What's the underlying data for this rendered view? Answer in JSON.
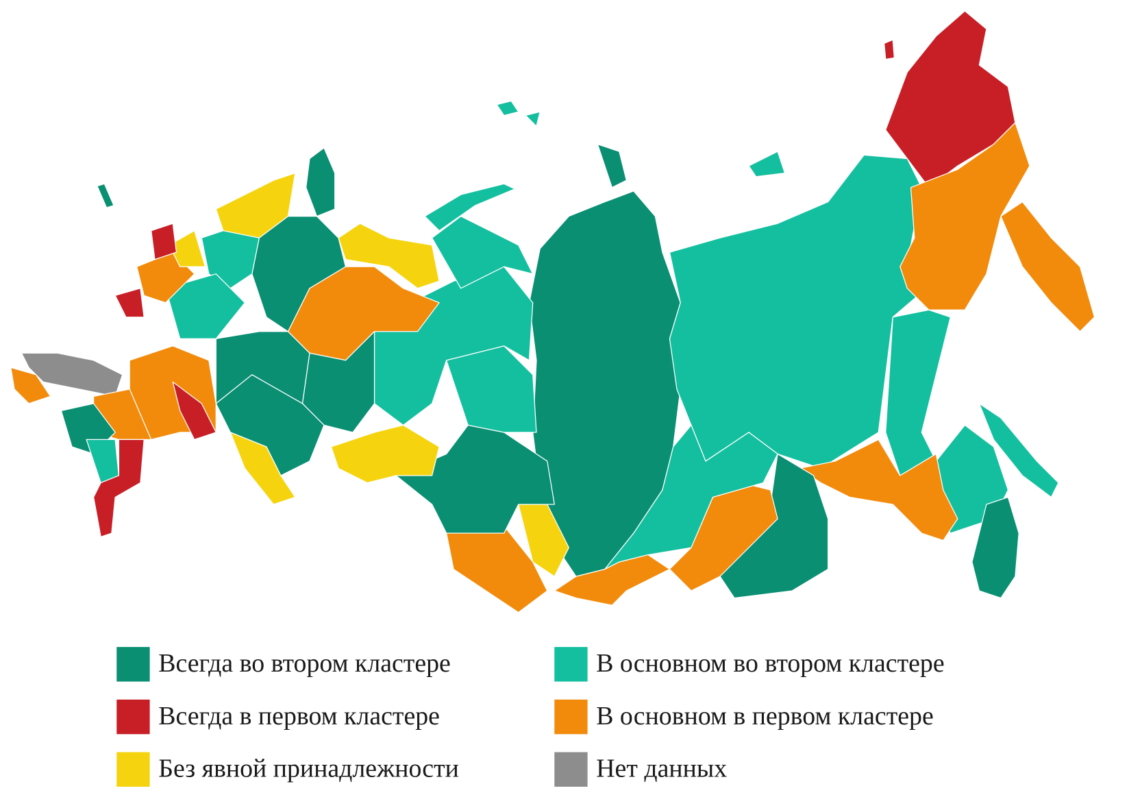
{
  "legend": [
    {
      "label": "Всегда во втором кластере",
      "color": "#0a8f73"
    },
    {
      "label": "В основном во втором кластере",
      "color": "#14bf9f"
    },
    {
      "label": "Всегда в первом кластере",
      "color": "#c81f27"
    },
    {
      "label": "В основном в первом кластере",
      "color": "#f28b0c"
    },
    {
      "label": "Без явной принадлежности",
      "color": "#f5d40f"
    },
    {
      "label": "Нет данных",
      "color": "#8d8d8d"
    }
  ]
}
